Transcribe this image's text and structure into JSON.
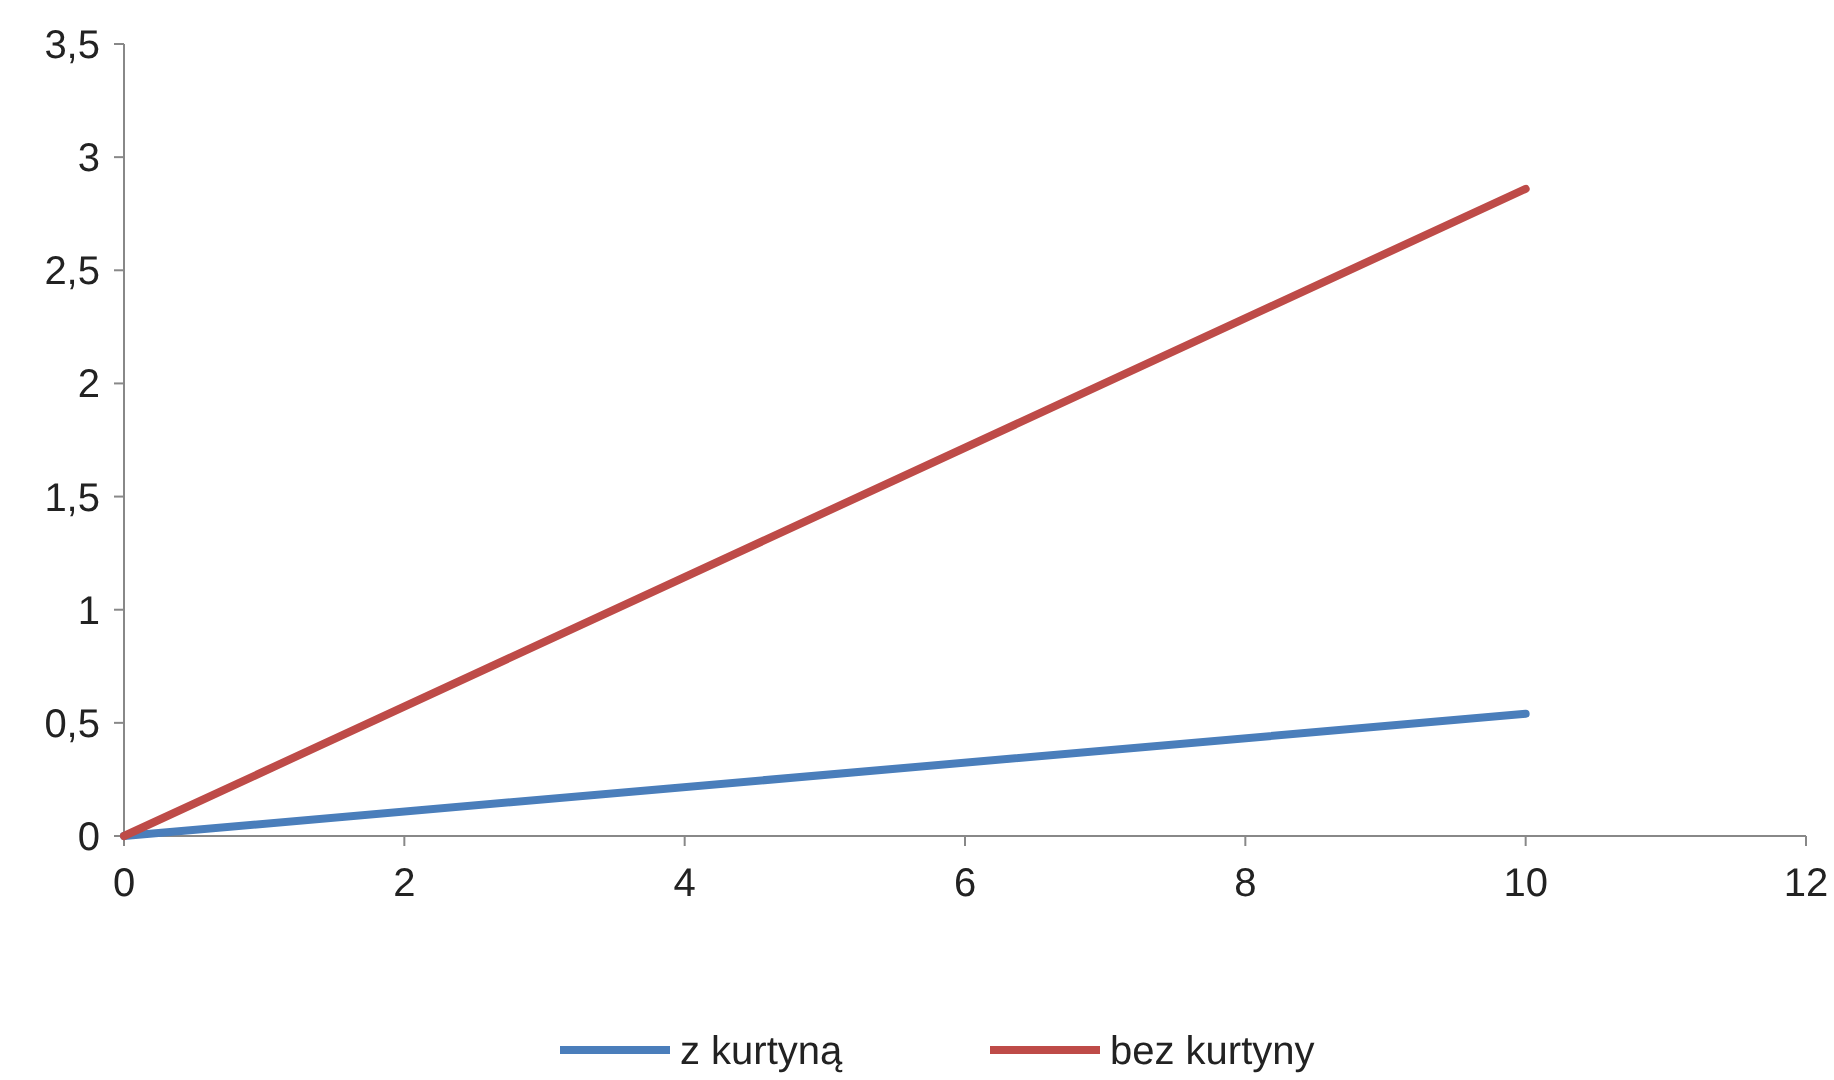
{
  "chart_data": {
    "type": "line",
    "x": [
      0,
      10
    ],
    "series": [
      {
        "name": "z kurtyną",
        "color": "#4a7ebb",
        "values": [
          0,
          0.54
        ]
      },
      {
        "name": "bez kurtyny",
        "color": "#be4b48",
        "values": [
          0,
          2.86
        ]
      }
    ],
    "xlim": [
      0,
      12
    ],
    "xticks": [
      0,
      2,
      4,
      6,
      8,
      10,
      12
    ],
    "ylim": [
      0,
      3.5
    ],
    "yticks": [
      0,
      {
        "value": 0.5,
        "label": "0,5"
      },
      1,
      {
        "value": 1.5,
        "label": "1,5"
      },
      2,
      {
        "value": 2.5,
        "label": "2,5"
      },
      3,
      {
        "value": 3.5,
        "label": "3,5"
      }
    ],
    "grid": false,
    "legend": "bottom",
    "marker": "none",
    "line_style": "solid"
  }
}
